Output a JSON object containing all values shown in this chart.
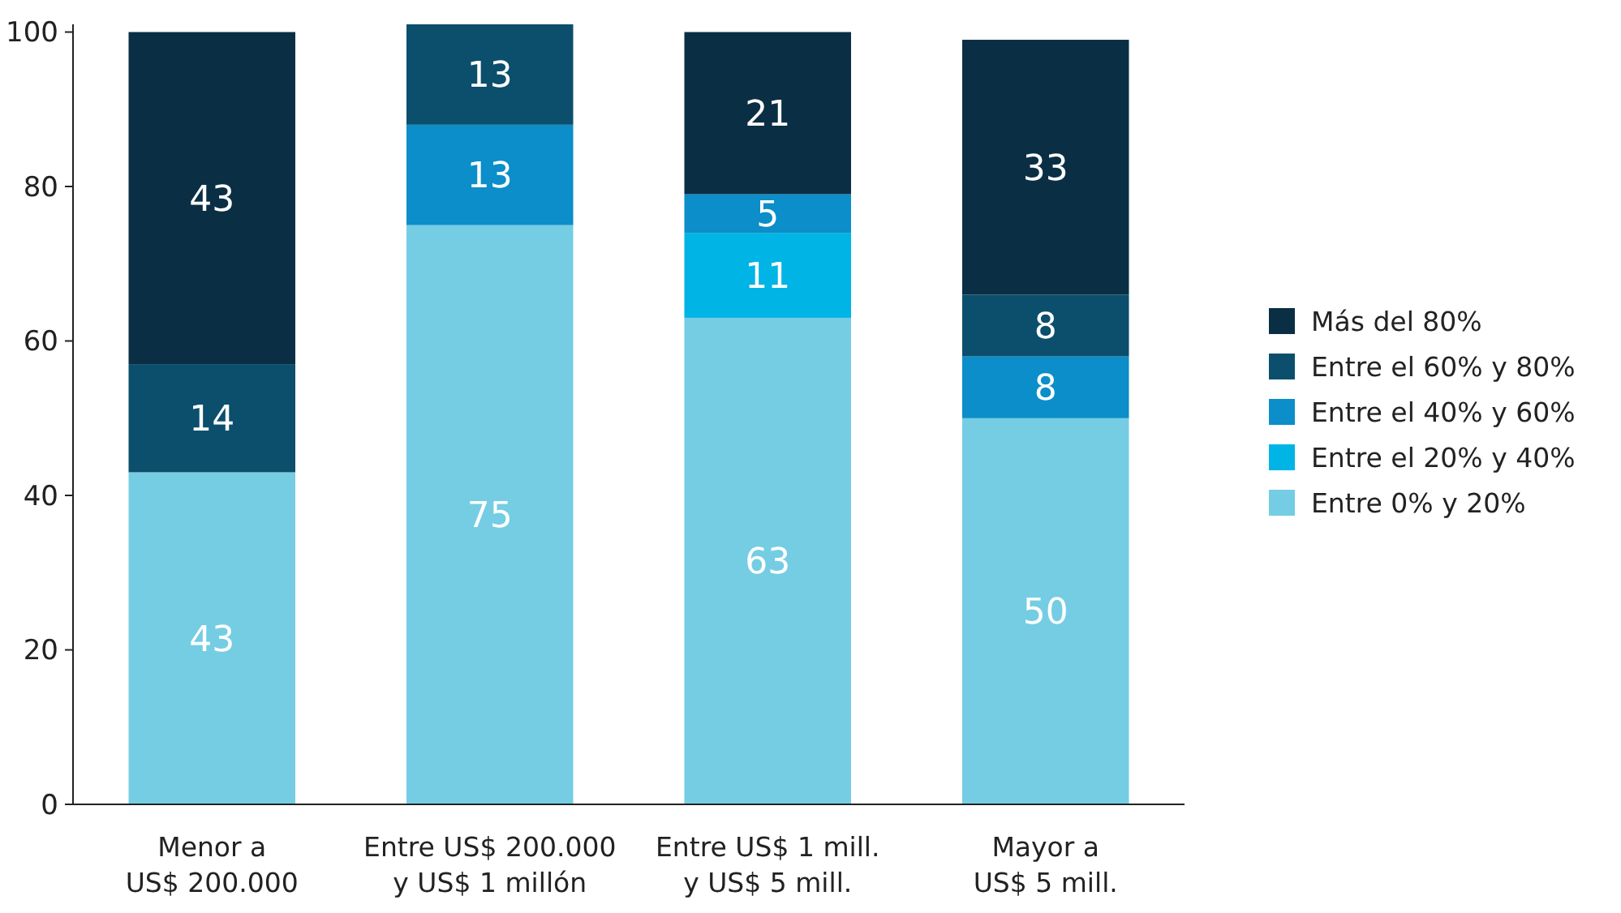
{
  "chart_data": {
    "type": "bar",
    "stacked": true,
    "data_labels": true,
    "legend": "right",
    "grid": false,
    "categories": [
      "Menor a\nUS$ 200.000",
      "Entre US$ 200.000\ny US$ 1 millón",
      "Entre US$ 1 mill.\ny US$ 5 mill.",
      "Mayor a\nUS$ 5 mill."
    ],
    "ylim": [
      0,
      101
    ],
    "yticks": [
      0,
      20,
      40,
      60,
      80,
      100
    ],
    "series": [
      {
        "name": "Entre 0% y 20%",
        "color": "#74cde3",
        "values": [
          43,
          75,
          63,
          50
        ]
      },
      {
        "name": "Entre el 20% y 40%",
        "color": "#00b4e5",
        "values": [
          null,
          null,
          11,
          null
        ]
      },
      {
        "name": "Entre el 40% y 60%",
        "color": "#0b8ec9",
        "values": [
          null,
          13,
          5,
          8
        ]
      },
      {
        "name": "Entre el 60% y 80%",
        "color": "#0b4f6c",
        "values": [
          14,
          13,
          null,
          8
        ]
      },
      {
        "name": "Más del 80%",
        "color": "#0a2f44",
        "values": [
          43,
          null,
          21,
          33
        ]
      }
    ]
  }
}
